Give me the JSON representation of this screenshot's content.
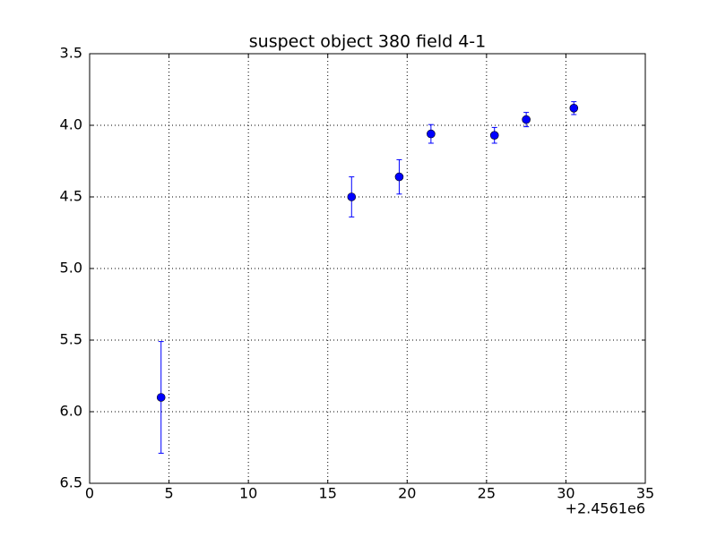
{
  "chart_data": {
    "type": "errorbar",
    "title": "suspect object 380 field 4-1",
    "x": [
      4.5,
      16.5,
      19.5,
      21.5,
      25.5,
      27.5,
      30.5
    ],
    "values": [
      5.9,
      4.5,
      4.36,
      4.06,
      4.07,
      3.96,
      3.88
    ],
    "errors": [
      0.39,
      0.14,
      0.12,
      0.065,
      0.055,
      0.05,
      0.045
    ],
    "color": "#0000ff",
    "xlim": [
      0,
      35
    ],
    "xticks": [
      0,
      5,
      10,
      15,
      20,
      25,
      30,
      35
    ],
    "x_offset_label": "+2.4561e6",
    "ylim": [
      6.5,
      3.5
    ],
    "yticks": [
      3.5,
      {
        "value": 4,
        "label": "4.0"
      },
      4.5,
      {
        "value": 5,
        "label": "5.0"
      },
      5.5,
      {
        "value": 6,
        "label": "6.0"
      },
      6.5
    ],
    "grid": true
  }
}
